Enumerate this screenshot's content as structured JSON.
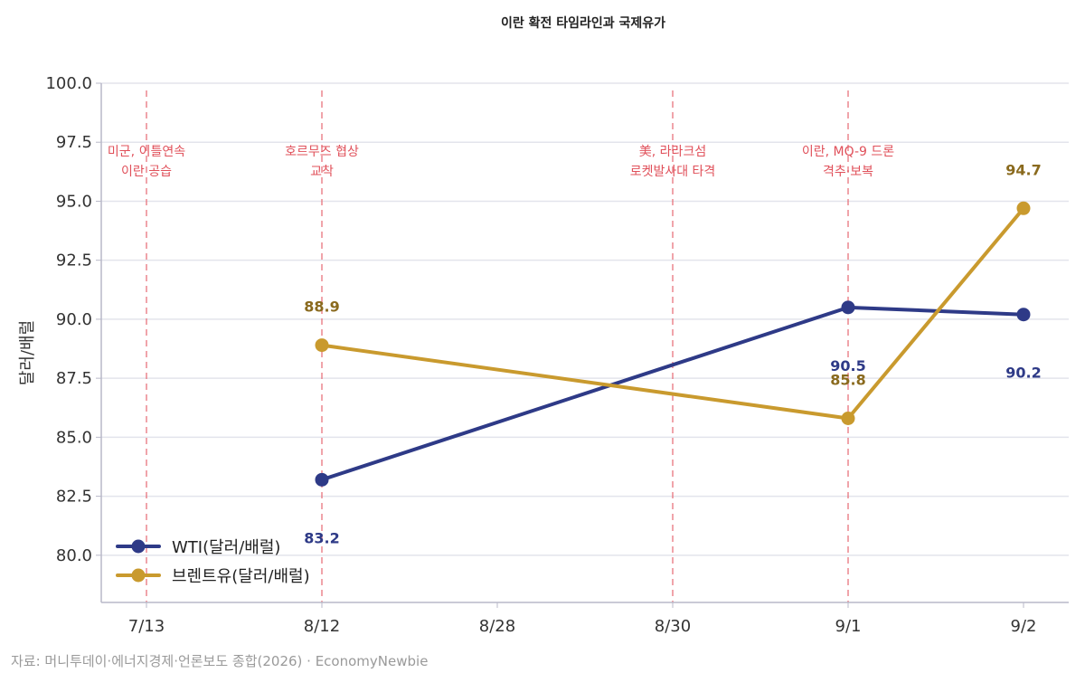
{
  "chart_data": {
    "type": "line",
    "title": "이란 확전 타임라인과 국제유가",
    "ylabel": "달러/배럴",
    "xlabel": "",
    "categories": [
      "7/13",
      "8/12",
      "8/28",
      "8/30",
      "9/1",
      "9/2"
    ],
    "ylim": [
      78,
      100
    ],
    "yticks": [
      "80.0",
      "82.5",
      "85.0",
      "87.5",
      "90.0",
      "92.5",
      "95.0",
      "97.5",
      "100.0"
    ],
    "grid": "horizontal",
    "legend_position": "bottom-left",
    "series": [
      {
        "name": "WTI(달러/배럴)",
        "color": "#2e3a87",
        "values": [
          null,
          83.2,
          null,
          null,
          90.5,
          90.2
        ],
        "labels": [
          "",
          "83.2",
          "",
          "",
          "90.5",
          "90.2"
        ],
        "label_position": "below"
      },
      {
        "name": "브렌트유(달러/배럴)",
        "color": "#c99a2e",
        "values": [
          null,
          88.9,
          null,
          null,
          85.8,
          94.7
        ],
        "labels": [
          "",
          "88.9",
          "",
          "",
          "85.8",
          "94.7"
        ],
        "label_position": "above"
      }
    ],
    "events": [
      {
        "category": "7/13",
        "lines": [
          "미군, 이틀연속",
          "이란 공습"
        ]
      },
      {
        "category": "8/12",
        "lines": [
          "호르무즈 협상",
          "교착"
        ]
      },
      {
        "category": "8/30",
        "lines": [
          "美, 라라크섬",
          "로켓발사대 타격"
        ]
      },
      {
        "category": "9/1",
        "lines": [
          "이란, MQ-9 드론",
          "격추·보복"
        ]
      }
    ],
    "event_color": "#e8707a",
    "label_colors": {
      "WTI": "#2e3a87",
      "Brent": "#8a6a1e"
    }
  },
  "source": "자료: 머니투데이·에너지경제·언론보도 종합(2026) · EconomyNewbie"
}
